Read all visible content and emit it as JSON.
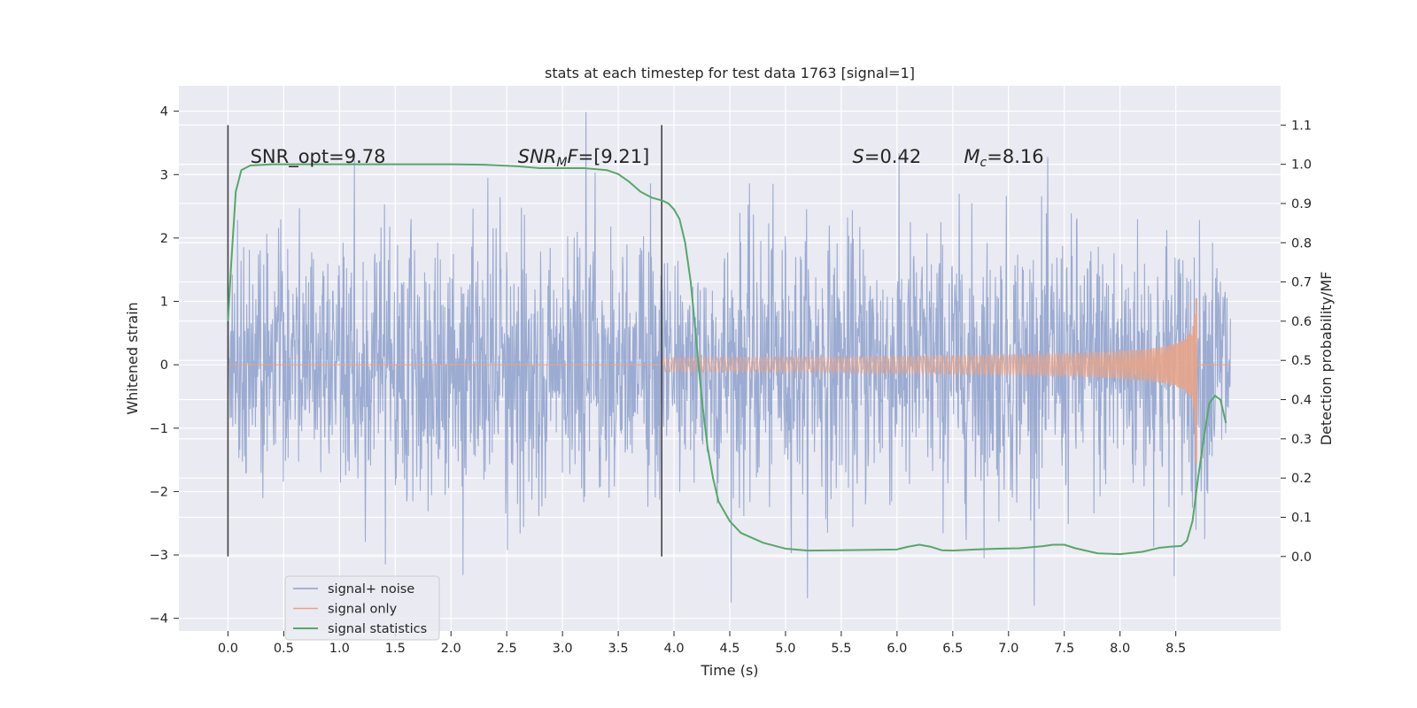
{
  "chart_data": {
    "type": "line",
    "title": "stats at each timestep for test data 1763 [signal=1]",
    "xlabel": "Time (s)",
    "ylabel": "Whitened strain",
    "y2label": "Detection probability/MF",
    "xlim": [
      -0.44,
      9.44
    ],
    "ylim": [
      -4.2,
      4.4
    ],
    "y2lim": [
      -0.19,
      1.2
    ],
    "x_ticks": [
      "0.0",
      "0.5",
      "1.0",
      "1.5",
      "2.0",
      "2.5",
      "3.0",
      "3.5",
      "4.0",
      "4.5",
      "5.0",
      "5.5",
      "6.0",
      "6.5",
      "7.0",
      "7.5",
      "8.0",
      "8.5"
    ],
    "x_tick_values": [
      0.0,
      0.5,
      1.0,
      1.5,
      2.0,
      2.5,
      3.0,
      3.5,
      4.0,
      4.5,
      5.0,
      5.5,
      6.0,
      6.5,
      7.0,
      7.5,
      8.0,
      8.5
    ],
    "y_ticks": [
      "−4",
      "−3",
      "−2",
      "−1",
      "0",
      "1",
      "2",
      "3",
      "4"
    ],
    "y_tick_values": [
      -4,
      -3,
      -2,
      -1,
      0,
      1,
      2,
      3,
      4
    ],
    "y2_ticks": [
      "0.0",
      "0.1",
      "0.2",
      "0.3",
      "0.4",
      "0.5",
      "0.6",
      "0.7",
      "0.8",
      "0.9",
      "1.0",
      "1.1"
    ],
    "y2_tick_values": [
      0.0,
      0.1,
      0.2,
      0.3,
      0.4,
      0.5,
      0.6,
      0.7,
      0.8,
      0.9,
      1.0,
      1.1
    ],
    "grid": true,
    "legend_position": "lower-left",
    "series": [
      {
        "name": "signal+ noise",
        "color": "#8da0cb",
        "axis": "left",
        "x_range": [
          0.0,
          8.99
        ],
        "noise_std": 1.0,
        "y_range": [
          -3.8,
          4.0
        ]
      },
      {
        "name": "signal only",
        "color": "#e5a48a",
        "axis": "left",
        "x_range": [
          0.0,
          8.99
        ],
        "chirp_start": 3.9,
        "merger_time": 8.68,
        "peak_amplitude": [
          -1.55,
          1.05
        ]
      },
      {
        "name": "signal statistics",
        "color": "#55a868",
        "axis": "right",
        "x": [
          0.0,
          0.03,
          0.07,
          0.12,
          0.2,
          0.4,
          1.0,
          1.5,
          2.0,
          2.3,
          2.6,
          2.8,
          3.0,
          3.2,
          3.4,
          3.5,
          3.6,
          3.7,
          3.8,
          3.9,
          3.95,
          4.0,
          4.05,
          4.1,
          4.15,
          4.2,
          4.25,
          4.3,
          4.35,
          4.4,
          4.5,
          4.6,
          4.8,
          5.0,
          5.2,
          5.5,
          5.8,
          6.0,
          6.1,
          6.2,
          6.3,
          6.4,
          6.5,
          6.7,
          6.9,
          7.1,
          7.3,
          7.4,
          7.5,
          7.6,
          7.8,
          8.0,
          8.2,
          8.35,
          8.45,
          8.55,
          8.6,
          8.65,
          8.7,
          8.75,
          8.8,
          8.85,
          8.9,
          8.95
        ],
        "y": [
          0.6,
          0.75,
          0.93,
          0.985,
          0.997,
          1.0,
          1.0,
          1.0,
          1.0,
          0.999,
          0.995,
          0.99,
          0.99,
          0.99,
          0.985,
          0.975,
          0.955,
          0.93,
          0.915,
          0.907,
          0.9,
          0.885,
          0.86,
          0.8,
          0.7,
          0.55,
          0.4,
          0.28,
          0.2,
          0.14,
          0.09,
          0.06,
          0.035,
          0.02,
          0.015,
          0.016,
          0.017,
          0.018,
          0.025,
          0.03,
          0.025,
          0.016,
          0.015,
          0.018,
          0.02,
          0.021,
          0.026,
          0.03,
          0.03,
          0.021,
          0.008,
          0.006,
          0.012,
          0.022,
          0.025,
          0.027,
          0.04,
          0.09,
          0.2,
          0.3,
          0.39,
          0.41,
          0.4,
          0.34
        ]
      }
    ],
    "vertical_markers": [
      0.0,
      3.89
    ],
    "annotations": [
      {
        "kind": "plain",
        "text": "SNR_opt=9.78",
        "x": 0.2
      },
      {
        "kind": "math",
        "symbol": "SNR",
        "sub": "M",
        "tail": "F=[9.21]",
        "x": 2.6
      },
      {
        "kind": "math",
        "symbol": "S",
        "sub": "",
        "tail": "=0.42",
        "x": 5.6
      },
      {
        "kind": "math",
        "symbol": "M",
        "sub": "c",
        "tail": "=8.16",
        "x": 6.6
      }
    ]
  }
}
